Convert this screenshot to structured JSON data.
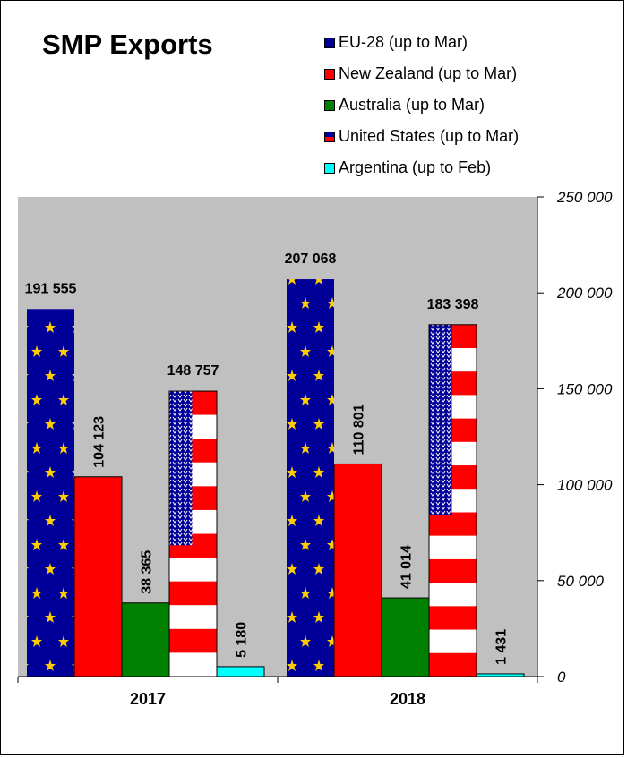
{
  "chart_data": {
    "type": "bar",
    "title": "SMP Exports",
    "categories": [
      "2017",
      "2018"
    ],
    "series": [
      {
        "name": "EU-28 (up to Mar)",
        "values": [
          191555,
          207068
        ],
        "labels": [
          "191 555",
          "207 068"
        ],
        "color": "#000099",
        "pattern": "eu-flag"
      },
      {
        "name": "New Zealand (up to Mar)",
        "values": [
          104123,
          110801
        ],
        "labels": [
          "104 123",
          "110 801"
        ],
        "color": "#ff0000",
        "pattern": "solid"
      },
      {
        "name": "Australia (up to Mar)",
        "values": [
          38365,
          41014
        ],
        "labels": [
          "38 365",
          "41 014"
        ],
        "color": "#008000",
        "pattern": "solid"
      },
      {
        "name": "United States (up to Mar)",
        "values": [
          148757,
          183398
        ],
        "labels": [
          "148 757",
          "183 398"
        ],
        "color": "#ff0000",
        "pattern": "us-flag"
      },
      {
        "name": "Argentina (up to Feb)",
        "values": [
          5180,
          1431
        ],
        "labels": [
          "5 180",
          "1 431"
        ],
        "color": "#00ffff",
        "pattern": "solid"
      }
    ],
    "yticks": [
      "0",
      "50 000",
      "100 000",
      "150 000",
      "200 000",
      "250 000"
    ],
    "ylim": [
      0,
      250000
    ],
    "plot_bg": "#c0c0c0",
    "legend_position": "top-right",
    "grid": false
  }
}
